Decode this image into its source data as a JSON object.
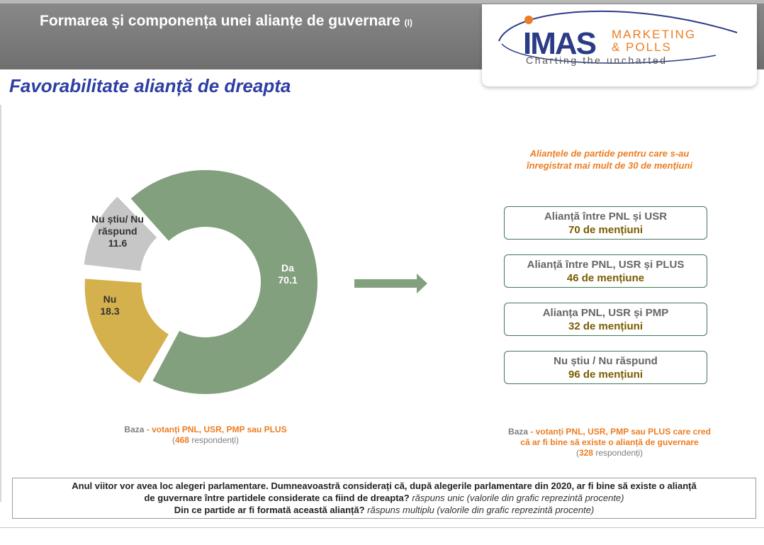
{
  "header": {
    "title": "Formarea și componența unei alianțe de guvernare",
    "title_suffix": "(I)"
  },
  "logo": {
    "main": "IMAS",
    "line1": "MARKETING",
    "line2": "& POLLS",
    "tagline": "Charting the uncharted"
  },
  "subtitle": "Favorabilitate alianță de dreapta",
  "chart_data": {
    "type": "pie",
    "variant": "donut",
    "slices": [
      {
        "label": "Da",
        "value": 70.1,
        "color": "#83a07e"
      },
      {
        "label": "Nu",
        "value": 18.3,
        "color": "#d5b14d"
      },
      {
        "label": "Nu știu/ Nu răspund",
        "value": 11.6,
        "color": "#c6c6c6"
      }
    ],
    "labels": {
      "da": "Da",
      "da_value": "70.1",
      "nu": "Nu",
      "nu_value": "18.3",
      "ns_line1": "Nu știu/ Nu",
      "ns_line2": "răspund",
      "ns_value": "11.6"
    }
  },
  "left_base": {
    "label": "Baza",
    "group": "votanți PNL, USR, PMP sau PLUS",
    "count": "468",
    "respondents": "respondenți"
  },
  "alliances": {
    "title_line1": "Alianțele de partide pentru care s-au",
    "title_line2": "înregistrat mai mult de 30 de mențiuni",
    "items": [
      {
        "name": "Alianță între PNL și USR",
        "count": "70 de mențiuni"
      },
      {
        "name": "Alianță între PNL, USR și PLUS",
        "count": "46 de mențiune"
      },
      {
        "name": "Alianța PNL, USR și PMP",
        "count": "32 de mențiuni"
      },
      {
        "name": "Nu știu / Nu răspund",
        "count": "96 de mențiuni"
      }
    ]
  },
  "right_base": {
    "label": "Baza",
    "group_line1": "votanți PNL, USR, PMP sau PLUS care cred",
    "group_line2": "că ar fi bine să existe o alianță de guvernare",
    "count": "328",
    "respondents": "respondenți"
  },
  "question": {
    "q1_line1": "Anul viitor vor avea loc alegeri parlamentare. Dumneavoastră considerați că, după alegerile parlamentare din 2020, ar fi bine să existe o alianță",
    "q1_line2": "de guvernare între partidele considerate ca fiind de dreapta?",
    "q1_note": "răspuns unic (valorile din grafic reprezintă procente)",
    "q2": "Din ce partide ar fi formată această alianță?",
    "q2_note": "răspuns multiplu (valorile din grafic reprezintă procente)"
  },
  "colors": {
    "accent_orange": "#ec7d22",
    "subtitle_blue": "#2e3fa3",
    "box_border": "#3f7a57",
    "count_text": "#7a5c00",
    "arrow": "#83a07e"
  }
}
